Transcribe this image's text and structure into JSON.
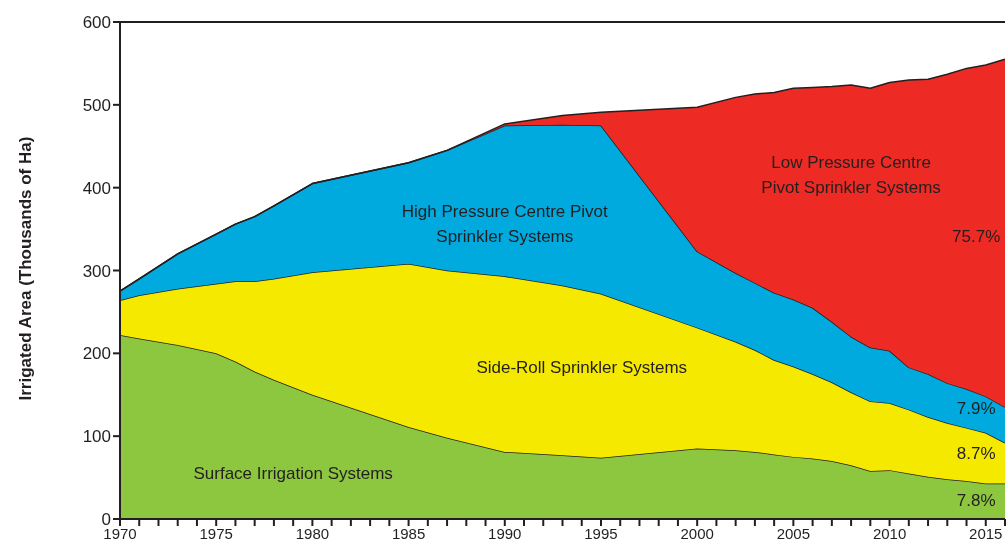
{
  "chart_data": {
    "type": "area",
    "stacked": true,
    "ylabel": "Irrigated Area (Thousands of Ha)",
    "x": [
      1970,
      1971,
      1972,
      1973,
      1975,
      1976,
      1977,
      1978,
      1980,
      1985,
      1987,
      1990,
      1993,
      1995,
      2000,
      2002,
      2003,
      2004,
      2005,
      2006,
      2007,
      2008,
      2009,
      2010,
      2011,
      2012,
      2013,
      2014,
      2015,
      2016
    ],
    "series": [
      {
        "name": "Surface Irrigation Systems",
        "color": "#8dc63f",
        "values": [
          222,
          218,
          214,
          210,
          200,
          190,
          178,
          168,
          150,
          111,
          98,
          81,
          77,
          74,
          85,
          83,
          81,
          78,
          75,
          73,
          70,
          65,
          58,
          59,
          55,
          51,
          48,
          46,
          43,
          43
        ]
      },
      {
        "name": "Side-Roll Sprinkler Systems",
        "color": "#f5e900",
        "values": [
          42,
          52,
          60,
          68,
          84,
          97,
          109,
          122,
          148,
          197,
          202,
          212,
          205,
          198,
          146,
          131,
          123,
          114,
          109,
          102,
          95,
          88,
          84,
          81,
          77,
          72,
          68,
          64,
          61,
          49
        ]
      },
      {
        "name": "High Pressure Centre Pivot\nSprinkler Systems",
        "color": "#00aadf",
        "values": [
          11,
          20,
          31,
          42,
          60,
          69,
          78,
          88,
          107,
          122,
          145,
          182,
          194,
          203,
          92,
          83,
          81,
          81,
          81,
          80,
          73,
          67,
          65,
          63,
          51,
          52,
          48,
          47,
          44,
          43
        ]
      },
      {
        "name": "Low Pressure Centre\nPivot Sprinkler Systems",
        "color": "#ed2b24",
        "values": [
          0,
          0,
          0,
          0,
          0,
          0,
          0,
          0,
          0,
          0,
          0,
          2,
          11,
          16,
          174,
          212,
          228,
          242,
          255,
          266,
          284,
          304,
          313,
          324,
          347,
          356,
          373,
          387,
          400,
          420
        ]
      }
    ],
    "annotations": [
      "75.7%",
      "7.9%",
      "8.7%",
      "7.8%"
    ],
    "xlim": [
      1970,
      2016
    ],
    "xticks": [
      1970,
      {
        "value": 1971,
        "label": null
      },
      {
        "value": 1972,
        "label": null
      },
      {
        "value": 1973,
        "label": null
      },
      {
        "value": 1974,
        "label": null
      },
      1975,
      {
        "value": 1976,
        "label": null
      },
      {
        "value": 1977,
        "label": null
      },
      {
        "value": 1978,
        "label": null
      },
      {
        "value": 1979,
        "label": null
      },
      1980,
      {
        "value": 1981,
        "label": null
      },
      {
        "value": 1982,
        "label": null
      },
      {
        "value": 1983,
        "label": null
      },
      {
        "value": 1984,
        "label": null
      },
      1985,
      {
        "value": 1986,
        "label": null
      },
      {
        "value": 1987,
        "label": null
      },
      {
        "value": 1988,
        "label": null
      },
      {
        "value": 1989,
        "label": null
      },
      1990,
      {
        "value": 1991,
        "label": null
      },
      {
        "value": 1992,
        "label": null
      },
      {
        "value": 1993,
        "label": null
      },
      {
        "value": 1994,
        "label": null
      },
      1995,
      {
        "value": 1996,
        "label": null
      },
      {
        "value": 1997,
        "label": null
      },
      {
        "value": 1998,
        "label": null
      },
      {
        "value": 1999,
        "label": null
      },
      2000,
      {
        "value": 2001,
        "label": null
      },
      {
        "value": 2002,
        "label": null
      },
      {
        "value": 2003,
        "label": null
      },
      {
        "value": 2004,
        "label": null
      },
      2005,
      {
        "value": 2006,
        "label": null
      },
      {
        "value": 2007,
        "label": null
      },
      {
        "value": 2008,
        "label": null
      },
      {
        "value": 2009,
        "label": null
      },
      2010,
      {
        "value": 2011,
        "label": null
      },
      {
        "value": 2012,
        "label": null
      },
      {
        "value": 2013,
        "label": null
      },
      {
        "value": 2014,
        "label": null
      },
      2015,
      {
        "value": 2016,
        "label": null
      }
    ],
    "ylim": [
      0,
      600
    ],
    "yticks": [
      0,
      100,
      200,
      300,
      400,
      500,
      600
    ],
    "grid": false,
    "legend": false
  }
}
